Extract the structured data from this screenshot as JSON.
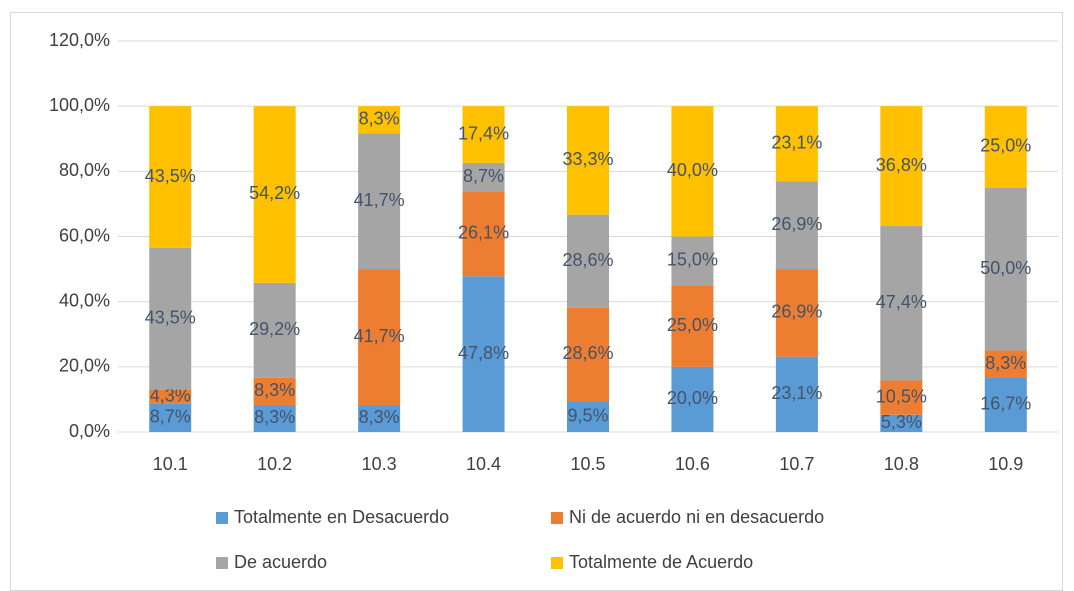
{
  "chart_data": {
    "type": "stacked_bar",
    "categories": [
      "10.1",
      "10.2",
      "10.3",
      "10.4",
      "10.5",
      "10.6",
      "10.7",
      "10.8",
      "10.9"
    ],
    "series": [
      {
        "name": "Totalmente en Desacuerdo",
        "color": "#5b9bd5",
        "values": [
          8.7,
          8.3,
          8.3,
          47.8,
          9.5,
          20.0,
          23.1,
          5.3,
          16.7
        ],
        "value_labels": [
          "8,7%",
          "8,3%",
          "8,3%",
          "47,8%",
          "9,5%",
          "20,0%",
          "23,1%",
          "5,3%",
          "16,7%"
        ]
      },
      {
        "name": "Ni de acuerdo ni en desacuerdo",
        "color": "#ed7d31",
        "values": [
          4.3,
          8.3,
          41.7,
          26.1,
          28.6,
          25.0,
          26.9,
          10.5,
          8.3
        ],
        "value_labels": [
          "4,3%",
          "8,3%",
          "41,7%",
          "26,1%",
          "28,6%",
          "25,0%",
          "26,9%",
          "10,5%",
          "8,3%"
        ]
      },
      {
        "name": "De acuerdo",
        "color": "#a5a5a5",
        "values": [
          43.5,
          29.2,
          41.7,
          8.7,
          28.6,
          15.0,
          26.9,
          47.4,
          50.0
        ],
        "value_labels": [
          "43,5%",
          "29,2%",
          "41,7%",
          "8,7%",
          "28,6%",
          "15,0%",
          "26,9%",
          "47,4%",
          "50,0%"
        ]
      },
      {
        "name": "Totalmente de Acuerdo",
        "color": "#ffc000",
        "values": [
          43.5,
          54.2,
          8.3,
          17.4,
          33.3,
          40.0,
          23.1,
          36.8,
          25.0
        ],
        "value_labels": [
          "43,5%",
          "54,2%",
          "8,3%",
          "17,4%",
          "33,3%",
          "40,0%",
          "23,1%",
          "36,8%",
          "25,0%"
        ]
      }
    ],
    "ylim": [
      0,
      120
    ],
    "yticks": [
      {
        "value": 0,
        "label": "0,0%"
      },
      {
        "value": 20,
        "label": "20,0%"
      },
      {
        "value": 40,
        "label": "40,0%"
      },
      {
        "value": 60,
        "label": "60,0%"
      },
      {
        "value": 80,
        "label": "80,0%"
      },
      {
        "value": 100,
        "label": "100,0%"
      },
      {
        "value": 120,
        "label": "120,0%"
      }
    ],
    "grid": true,
    "legend": "bottom"
  }
}
